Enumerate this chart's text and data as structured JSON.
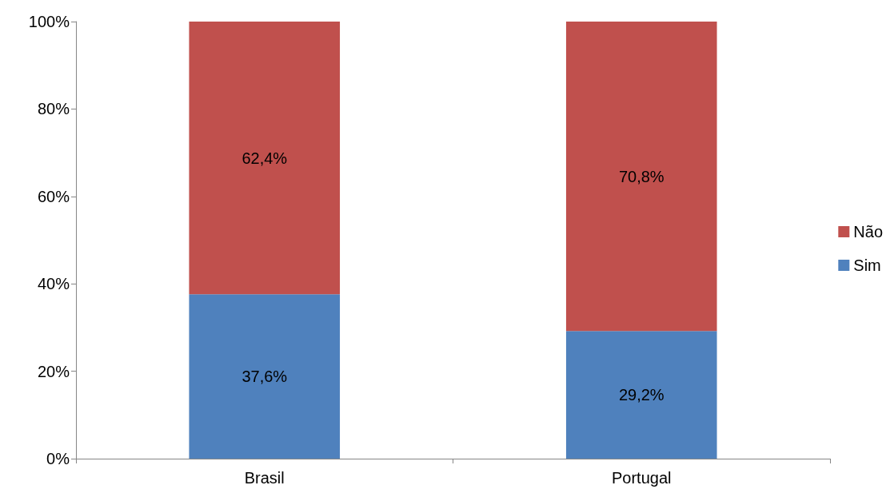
{
  "chart_data": {
    "type": "bar",
    "stacked": true,
    "categories": [
      "Brasil",
      "Portugal"
    ],
    "series": [
      {
        "name": "Sim",
        "color": "#4f81bd",
        "values": [
          37.6,
          29.2
        ],
        "value_labels": [
          "37,6%",
          "29,2%"
        ]
      },
      {
        "name": "Não",
        "color": "#c0504d",
        "values": [
          62.4,
          70.8
        ],
        "value_labels": [
          "62,4%",
          "70,8%"
        ]
      }
    ],
    "ylim": [
      0,
      100
    ],
    "yticks": [
      {
        "value": 0,
        "label": "0%"
      },
      {
        "value": 20,
        "label": "20%"
      },
      {
        "value": 40,
        "label": "40%"
      },
      {
        "value": 60,
        "label": "60%"
      },
      {
        "value": 80,
        "label": "80%"
      },
      {
        "value": 100,
        "label": "100%"
      }
    ],
    "legend": "right"
  }
}
